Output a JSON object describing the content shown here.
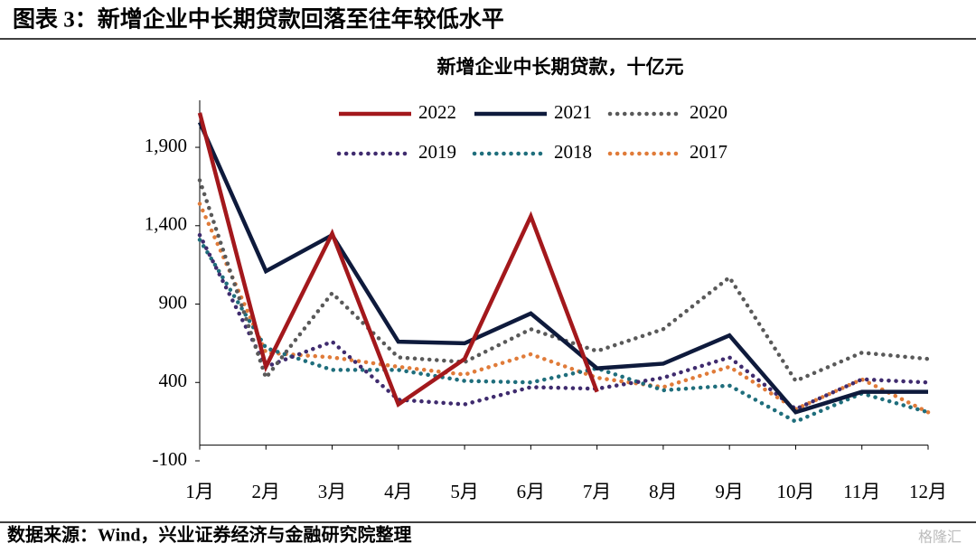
{
  "header": {
    "title": "图表 3：新增企业中长期贷款回落至往年较低水平"
  },
  "chart_data": {
    "type": "line",
    "title": "新增企业中长期贷款，十亿元",
    "categories": [
      "1月",
      "2月",
      "3月",
      "4月",
      "5月",
      "6月",
      "7月",
      "8月",
      "9月",
      "10月",
      "11月",
      "12月"
    ],
    "series": [
      {
        "name": "2022",
        "color": "#a3181c",
        "style": "solid",
        "values": [
          2120,
          500,
          1350,
          260,
          550,
          1460,
          340,
          null,
          null,
          null,
          null,
          null
        ]
      },
      {
        "name": "2021",
        "color": "#0e1a3c",
        "style": "solid",
        "values": [
          2060,
          1110,
          1340,
          660,
          650,
          840,
          490,
          520,
          700,
          210,
          340,
          340
        ]
      },
      {
        "name": "2020",
        "color": "#595959",
        "style": "dotted",
        "values": [
          1690,
          430,
          970,
          560,
          530,
          740,
          600,
          740,
          1070,
          410,
          590,
          550
        ]
      },
      {
        "name": "2019",
        "color": "#3f2b6e",
        "style": "dotted",
        "values": [
          1340,
          500,
          660,
          290,
          260,
          370,
          360,
          430,
          560,
          230,
          420,
          400
        ]
      },
      {
        "name": "2018",
        "color": "#1f6e7c",
        "style": "dotted",
        "values": [
          1310,
          620,
          480,
          480,
          410,
          400,
          490,
          350,
          380,
          150,
          330,
          210
        ]
      },
      {
        "name": "2017",
        "color": "#e07b39",
        "style": "dotted",
        "values": [
          1540,
          590,
          560,
          500,
          450,
          580,
          430,
          370,
          500,
          230,
          420,
          210
        ]
      }
    ],
    "ylim": [
      -100,
      2200
    ],
    "yticks": [
      -100,
      400,
      900,
      {
        "value": 1400,
        "label": "1,400"
      },
      {
        "value": 1900,
        "label": "1,900"
      }
    ]
  },
  "footer": {
    "source": "数据来源：Wind，兴业证券经济与金融研究院整理",
    "watermark": "格隆汇"
  }
}
